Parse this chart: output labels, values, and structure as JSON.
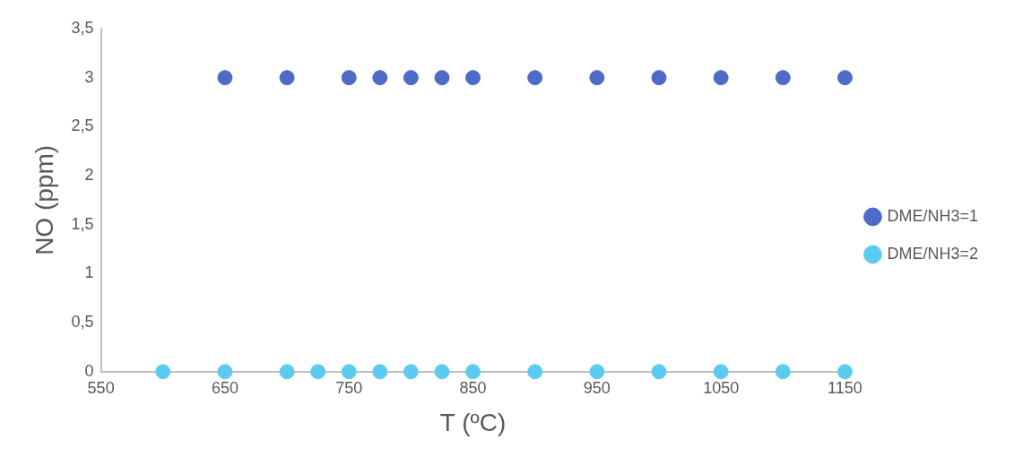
{
  "chart_data": {
    "type": "scatter",
    "xlabel": "T (ºC)",
    "ylabel": "NO (ppm)",
    "xlim": [
      550,
      1150
    ],
    "xticks": [
      550,
      650,
      750,
      850,
      950,
      1050,
      1150
    ],
    "ylim": [
      0,
      3.5
    ],
    "yticks": [
      0,
      {
        "value": 0.5,
        "label": "0,5"
      },
      1,
      {
        "value": 1.5,
        "label": "1,5"
      },
      2,
      {
        "value": 2.5,
        "label": "2,5"
      },
      3,
      {
        "value": 3.5,
        "label": "3,5"
      }
    ],
    "grid": false,
    "legend": "right",
    "marker": "circle",
    "series": [
      {
        "name": "DME/NH3=1",
        "color": "#4f6bc9",
        "x": [
          650,
          700,
          750,
          775,
          800,
          825,
          850,
          900,
          950,
          1000,
          1050,
          1100,
          1150
        ],
        "values": [
          3,
          3,
          3,
          3,
          3,
          3,
          3,
          3,
          3,
          3,
          3,
          3,
          3
        ]
      },
      {
        "name": "DME/NH3=2",
        "color": "#5ccbf2",
        "x": [
          600,
          650,
          700,
          725,
          750,
          775,
          800,
          825,
          850,
          900,
          950,
          1000,
          1050,
          1100,
          1150
        ],
        "values": [
          0,
          0,
          0,
          0,
          0,
          0,
          0,
          0,
          0,
          0,
          0,
          0,
          0,
          0,
          0
        ]
      }
    ]
  }
}
